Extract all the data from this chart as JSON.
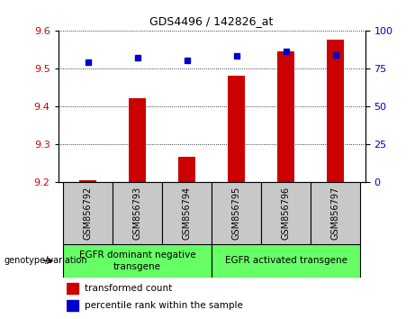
{
  "title": "GDS4496 / 142826_at",
  "samples": [
    "GSM856792",
    "GSM856793",
    "GSM856794",
    "GSM856795",
    "GSM856796",
    "GSM856797"
  ],
  "transformed_count": [
    9.205,
    9.42,
    9.265,
    9.48,
    9.545,
    9.575
  ],
  "percentile_rank": [
    79,
    82,
    80,
    83,
    86,
    84
  ],
  "ylim_left": [
    9.2,
    9.6
  ],
  "ylim_right": [
    0,
    100
  ],
  "yticks_left": [
    9.2,
    9.3,
    9.4,
    9.5,
    9.6
  ],
  "yticks_right": [
    0,
    25,
    50,
    75,
    100
  ],
  "bar_color": "#cc0000",
  "marker_color": "#0000cc",
  "bar_width": 0.35,
  "group1_label": "EGFR dominant negative\ntransgene",
  "group2_label": "EGFR activated transgene",
  "group_prefix": "genotype/variation",
  "legend_red": "transformed count",
  "legend_blue": "percentile rank within the sample",
  "left_tick_color": "#cc0000",
  "right_tick_color": "#0000cc",
  "sample_box_color": "#c8c8c8",
  "group_box_color": "#66ff66",
  "background_color": "#ffffff"
}
